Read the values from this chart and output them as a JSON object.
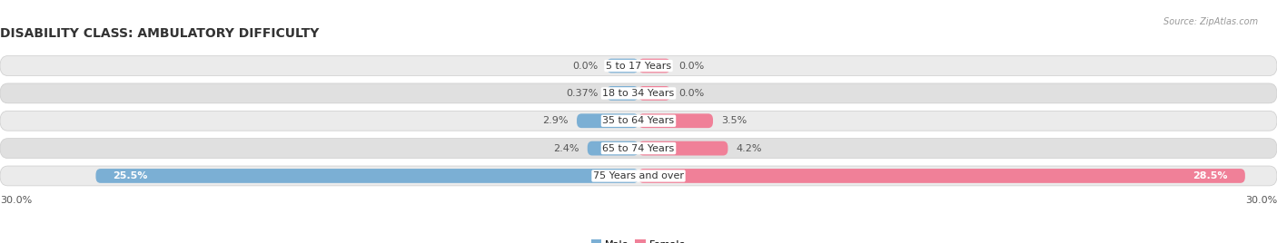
{
  "title": "DISABILITY CLASS: AMBULATORY DIFFICULTY",
  "source": "Source: ZipAtlas.com",
  "categories": [
    "5 to 17 Years",
    "18 to 34 Years",
    "35 to 64 Years",
    "65 to 74 Years",
    "75 Years and over"
  ],
  "male_values": [
    0.0,
    0.37,
    2.9,
    2.4,
    25.5
  ],
  "female_values": [
    0.0,
    0.0,
    3.5,
    4.2,
    28.5
  ],
  "male_labels": [
    "0.0%",
    "0.37%",
    "2.9%",
    "2.4%",
    "25.5%"
  ],
  "female_labels": [
    "0.0%",
    "0.0%",
    "3.5%",
    "4.2%",
    "28.5%"
  ],
  "male_color": "#7bafd4",
  "female_color": "#f08098",
  "row_bg_color_odd": "#ebebeb",
  "row_bg_color_even": "#e0e0e0",
  "max_val": 30.0,
  "axis_label_left": "30.0%",
  "axis_label_right": "30.0%",
  "title_fontsize": 10,
  "label_fontsize": 8,
  "category_fontsize": 8,
  "bar_height": 0.52,
  "min_bar_display": 1.5,
  "figsize": [
    14.06,
    2.68
  ],
  "dpi": 100
}
